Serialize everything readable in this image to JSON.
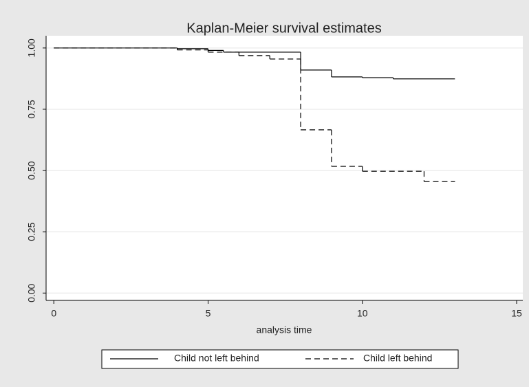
{
  "chart_data": {
    "type": "step",
    "title": "Kaplan-Meier survival estimates",
    "xlabel": "analysis time",
    "xlim": [
      -0.25,
      15.2
    ],
    "xticks": [
      0,
      5,
      10,
      15
    ],
    "ylim": [
      -0.03,
      1.05
    ],
    "yticks": [
      {
        "value": 0,
        "label": "0.00"
      },
      {
        "value": 0.25,
        "label": "0.25"
      },
      {
        "value": 0.5,
        "label": "0.50"
      },
      {
        "value": 0.75,
        "label": "0.75"
      },
      {
        "value": 1,
        "label": "1.00"
      }
    ],
    "grid": true,
    "legend": "bottom",
    "series": [
      {
        "name": "Child not left behind",
        "color": "#000000",
        "dash": "none",
        "x": [
          0,
          4,
          5,
          5.5,
          8,
          9,
          10,
          11,
          13
        ],
        "values": [
          1,
          0.997,
          0.99,
          0.983,
          0.91,
          0.882,
          0.879,
          0.874,
          0.874
        ]
      },
      {
        "name": "Child left behind",
        "color": "#000000",
        "dash": "8,5",
        "x": [
          0,
          4,
          5,
          6,
          7,
          8,
          9,
          10,
          12,
          13
        ],
        "values": [
          1,
          0.992,
          0.983,
          0.969,
          0.955,
          0.666,
          0.517,
          0.497,
          0.455,
          0.455
        ]
      }
    ]
  }
}
